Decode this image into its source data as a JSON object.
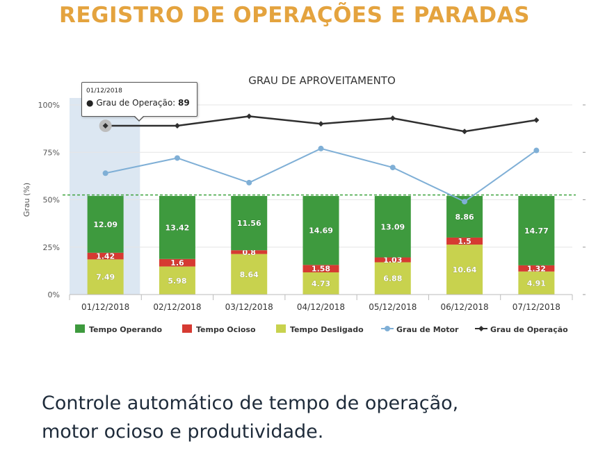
{
  "headline": "REGISTRO DE OPERAÇÕES E PARADAS",
  "subheadline": {
    "line1": "Controle automático de tempo de operação,",
    "line2": "motor ocioso e produtividade."
  },
  "tooltip": {
    "date": "01/12/2018",
    "series_label": "Grau de Operação:",
    "value": "89"
  },
  "colors": {
    "headline": "#E4A33E",
    "operando": "#3E9A3E",
    "ocioso": "#D63A32",
    "desligado": "#C8D24E",
    "motor": "#7FAFD6",
    "operacao": "#2F2F2F",
    "threshold": "#3EA33E",
    "highlight": "#DCE7F2"
  },
  "chart_data": {
    "type": "bar",
    "stacked": true,
    "title": "GRAU DE APROVEITAMENTO",
    "ylabel": "Grau (%)",
    "xlabel": "",
    "ylim": [
      0,
      105
    ],
    "yticks": [
      "0%",
      "25%",
      "50%",
      "75%",
      "100%"
    ],
    "ytick_values": [
      0,
      25,
      50,
      75,
      100
    ],
    "bar_total": 52,
    "threshold": 52.5,
    "highlight_index": 0,
    "categories": [
      "01/12/2018",
      "02/12/2018",
      "03/12/2018",
      "04/12/2018",
      "05/12/2018",
      "06/12/2018",
      "07/12/2018"
    ],
    "series": [
      {
        "name": "Tempo Desligado",
        "kind": "bar",
        "color_key": "desligado",
        "values": [
          7.49,
          5.98,
          8.64,
          4.73,
          6.88,
          10.64,
          4.91
        ],
        "labels": [
          "7.49",
          "5.98",
          "8.64",
          "4.73",
          "6.88",
          "10.64",
          "4.91"
        ]
      },
      {
        "name": "Tempo Ocioso",
        "kind": "bar",
        "color_key": "ocioso",
        "values": [
          1.42,
          1.6,
          0.8,
          1.58,
          1.03,
          1.5,
          1.32
        ],
        "labels": [
          "1.42",
          "1.6",
          "0.8",
          "1.58",
          "1.03",
          "1.5",
          "1.32"
        ]
      },
      {
        "name": "Tempo Operando",
        "kind": "bar",
        "color_key": "operando",
        "values": [
          12.09,
          13.42,
          11.56,
          14.69,
          13.09,
          8.86,
          14.77
        ],
        "labels": [
          "12.09",
          "13.42",
          "11.56",
          "14.69",
          "13.09",
          "8.86",
          "14.77"
        ]
      },
      {
        "name": "Grau de Motor",
        "kind": "line",
        "color_key": "motor",
        "marker": "circle",
        "values": [
          64,
          72,
          59,
          77,
          67,
          49,
          76
        ]
      },
      {
        "name": "Grau de Operação",
        "kind": "line",
        "color_key": "operacao",
        "marker": "diamond",
        "values": [
          89,
          89,
          94,
          90,
          93,
          86,
          92
        ]
      }
    ],
    "legend": [
      {
        "label": "Tempo Operando",
        "color_key": "operando",
        "symbol": "square"
      },
      {
        "label": "Tempo Ocioso",
        "color_key": "ocioso",
        "symbol": "square"
      },
      {
        "label": "Tempo Desligado",
        "color_key": "desligado",
        "symbol": "square"
      },
      {
        "label": "Grau de Motor",
        "color_key": "motor",
        "symbol": "line-circle"
      },
      {
        "label": "Grau de Operação",
        "color_key": "operacao",
        "symbol": "line-diamond"
      }
    ],
    "legend_position": "bottom"
  }
}
